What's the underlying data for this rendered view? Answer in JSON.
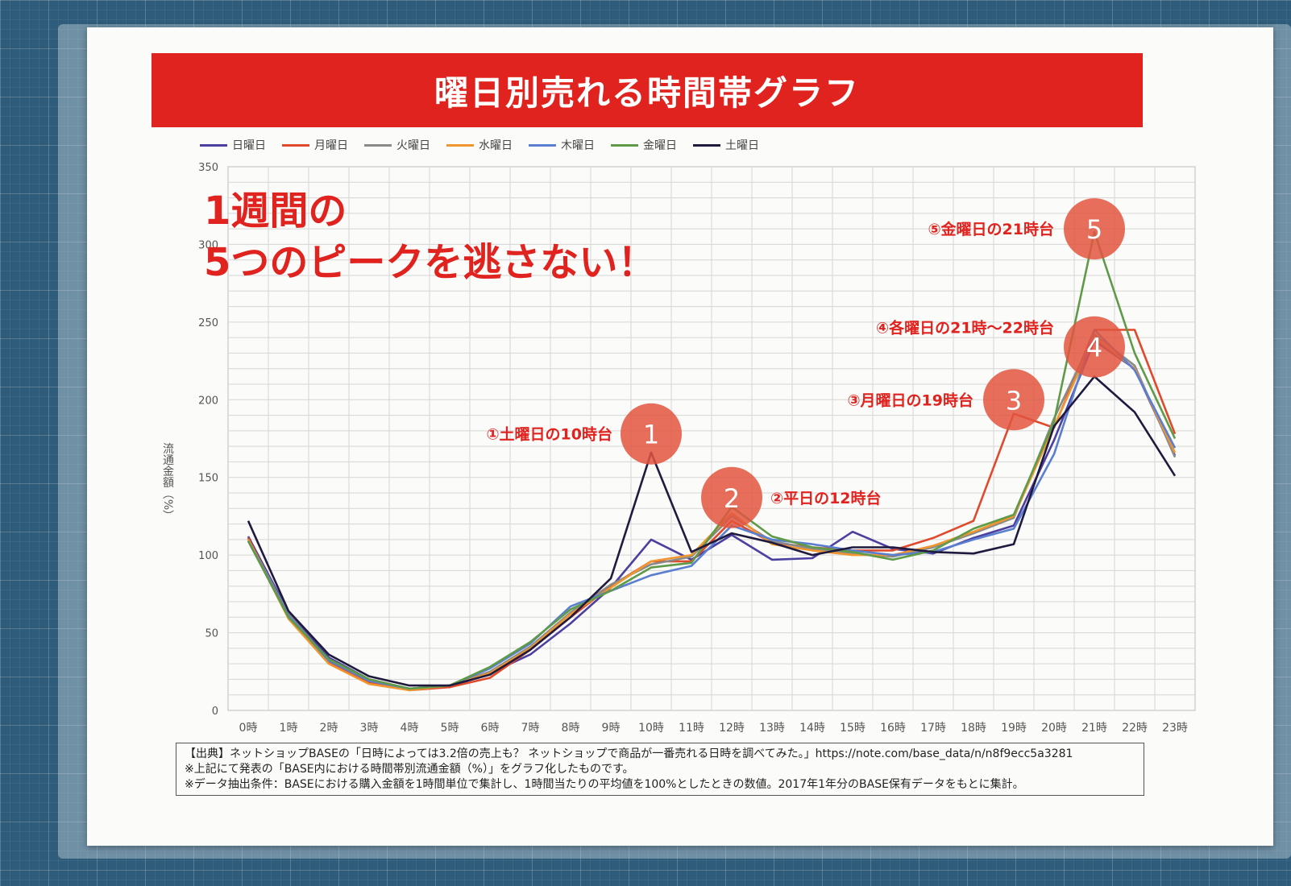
{
  "title": "曜日別売れる時間帯グラフ",
  "headline": {
    "line1": "1週間の",
    "line2": "5つのピークを逃さない！"
  },
  "colors": {
    "banner": "#e0231f",
    "accent_text": "#e0231f",
    "circle": "#e2553f"
  },
  "chart_data": {
    "type": "line",
    "title": "曜日別売れる時間帯グラフ",
    "xlabel": "",
    "ylabel": "流通金額（%）",
    "ylim": [
      0,
      350
    ],
    "y_ticks": [
      0,
      50,
      100,
      150,
      200,
      250,
      300,
      350
    ],
    "grid": true,
    "legend_position": "top",
    "categories": [
      "0時",
      "1時",
      "2時",
      "3時",
      "4時",
      "5時",
      "6時",
      "7時",
      "8時",
      "9時",
      "10時",
      "11時",
      "12時",
      "13時",
      "14時",
      "15時",
      "16時",
      "17時",
      "18時",
      "19時",
      "20時",
      "21時",
      "22時",
      "23時"
    ],
    "series": [
      {
        "name": "日曜日",
        "color": "#4b3fa0",
        "values": [
          112,
          63,
          34,
          20,
          14,
          15,
          24,
          36,
          56,
          79,
          110,
          97,
          113,
          97,
          98,
          115,
          104,
          101,
          111,
          119,
          174,
          238,
          220,
          164
        ]
      },
      {
        "name": "月曜日",
        "color": "#e0492c",
        "values": [
          111,
          61,
          31,
          18,
          13,
          15,
          21,
          39,
          60,
          80,
          96,
          96,
          122,
          108,
          105,
          103,
          103,
          111,
          122,
          191,
          182,
          245,
          245,
          178
        ]
      },
      {
        "name": "火曜日",
        "color": "#8a8a8a",
        "values": [
          110,
          62,
          32,
          19,
          14,
          16,
          25,
          41,
          63,
          81,
          94,
          99,
          125,
          109,
          104,
          101,
          99,
          105,
          114,
          124,
          188,
          242,
          222,
          163
        ]
      },
      {
        "name": "水曜日",
        "color": "#f0962e",
        "values": [
          110,
          59,
          30,
          17,
          13,
          16,
          24,
          40,
          62,
          79,
          96,
          100,
          127,
          107,
          103,
          100,
          100,
          106,
          115,
          125,
          183,
          240,
          220,
          166
        ]
      },
      {
        "name": "木曜日",
        "color": "#5a7ed0",
        "values": [
          109,
          61,
          32,
          19,
          14,
          16,
          27,
          43,
          67,
          77,
          87,
          93,
          119,
          110,
          107,
          103,
          100,
          102,
          110,
          117,
          165,
          245,
          219,
          169
        ]
      },
      {
        "name": "金曜日",
        "color": "#5e9a48",
        "values": [
          109,
          60,
          33,
          20,
          14,
          16,
          28,
          44,
          65,
          77,
          92,
          95,
          131,
          112,
          105,
          102,
          97,
          103,
          117,
          126,
          186,
          308,
          230,
          175
        ]
      },
      {
        "name": "土曜日",
        "color": "#1f1a3e",
        "values": [
          122,
          64,
          36,
          22,
          16,
          16,
          23,
          39,
          60,
          85,
          166,
          102,
          114,
          108,
          100,
          105,
          105,
          102,
          101,
          107,
          183,
          215,
          192,
          151
        ]
      }
    ],
    "annotations": [
      {
        "number": "1",
        "label": "①土曜日の10時台",
        "x": "10時",
        "y": 178
      },
      {
        "number": "2",
        "label": "②平日の12時台",
        "x": "12時",
        "y": 137
      },
      {
        "number": "3",
        "label": "③月曜日の19時台",
        "x": "19時",
        "y": 200
      },
      {
        "number": "4",
        "label": "④各曜日の21時～22時台",
        "x": "21時",
        "y": 234
      },
      {
        "number": "5",
        "label": "⑤金曜日の21時台",
        "x": "21時",
        "y": 310
      }
    ]
  },
  "source": {
    "line1": "【出典】ネットショップBASEの「日時によっては3.2倍の売上も？ ネットショップで商品が一番売れる日時を調べてみた。」https://note.com/base_data/n/n8f9ecc5a3281",
    "line2": "※上記にて発表の「BASE内における時間帯別流通金額（%）」をグラフ化したものです。",
    "line3": "※データ抽出条件：BASEにおける購入金額を1時間単位で集計し、1時間当たりの平均値を100%としたときの数値。2017年1年分のBASE保有データをもとに集計。"
  }
}
